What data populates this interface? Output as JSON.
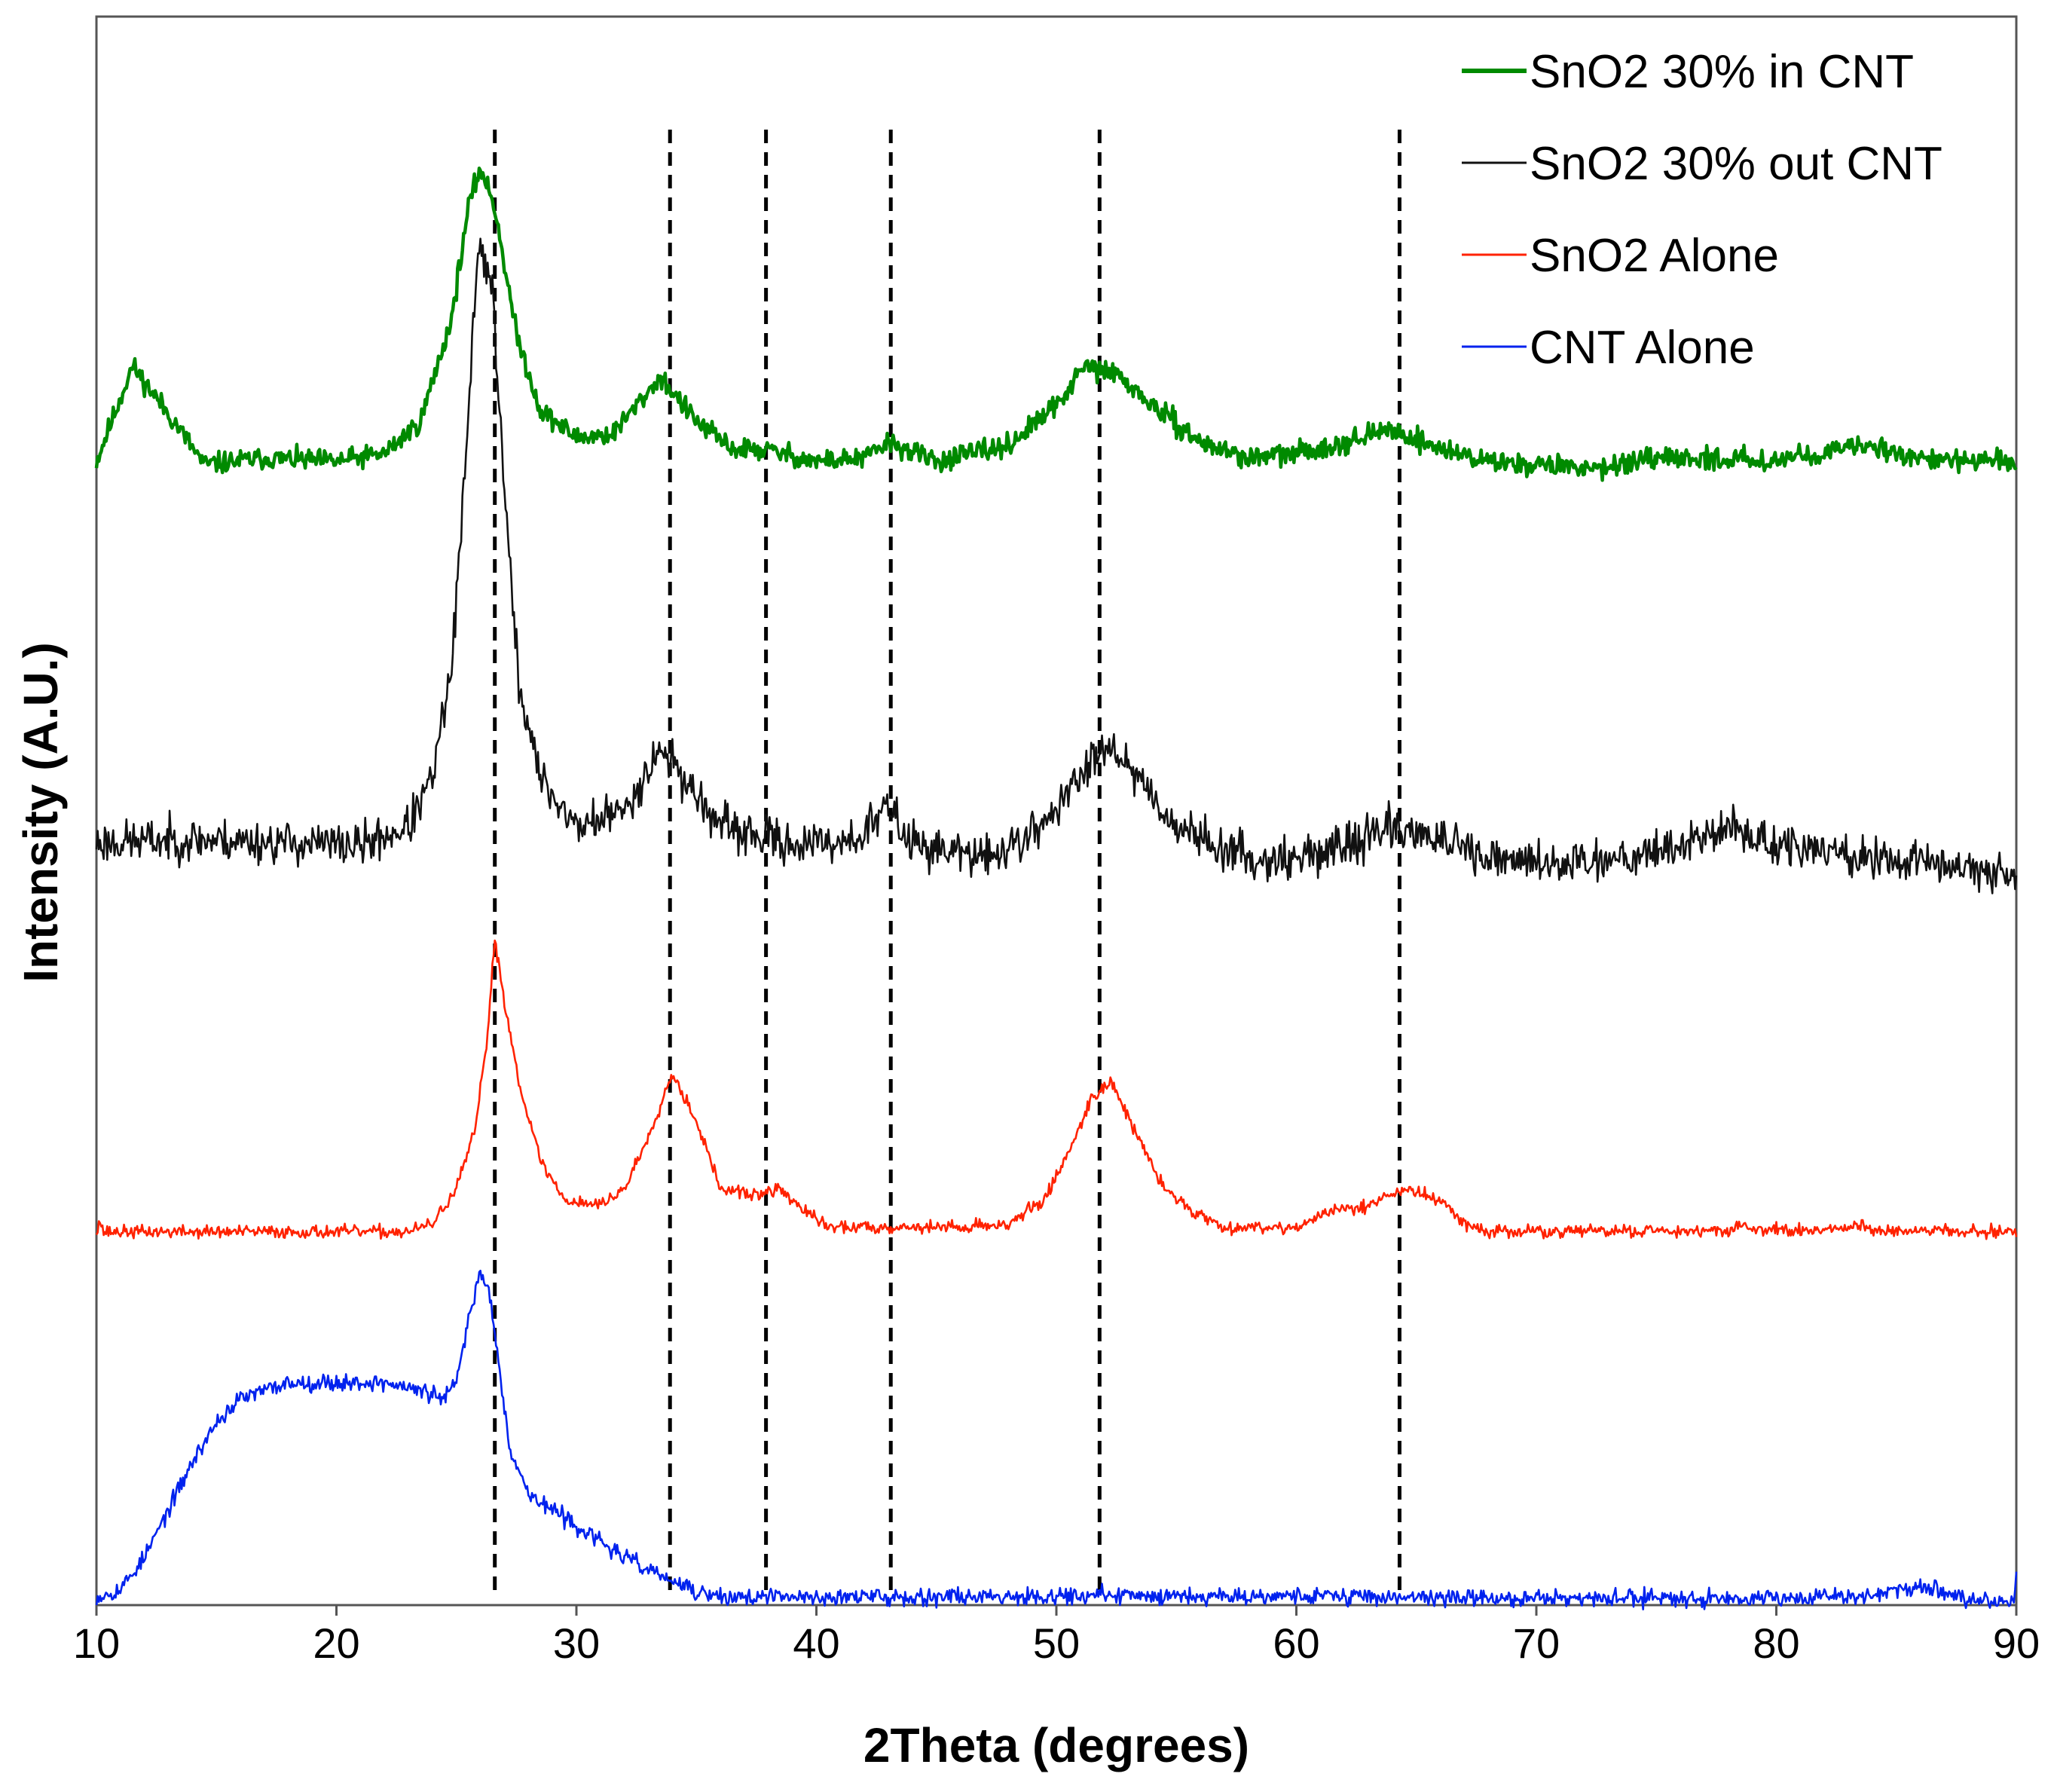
{
  "chart_data": {
    "type": "line",
    "title": "",
    "xlabel": "2Theta (degrees)",
    "ylabel": "Intensity (A.U.)",
    "xlim": [
      10,
      90
    ],
    "xticks": [
      10,
      20,
      30,
      40,
      50,
      60,
      70,
      80,
      90
    ],
    "ylim": [
      0,
      1
    ],
    "y_tick_labels": false,
    "grid": false,
    "legend_position": "top-right",
    "reference_lines": {
      "style": "dashed",
      "color": "#000000",
      "x": [
        26.6,
        33.9,
        37.9,
        43.1,
        51.8,
        64.3
      ]
    },
    "series": [
      {
        "name": "SnO2 30% in CNT",
        "color": "#008a00",
        "stroke": "thick",
        "noise": 0.01,
        "seed": 11,
        "points": [
          [
            10,
            0.72
          ],
          [
            11.5,
            0.78
          ],
          [
            13,
            0.75
          ],
          [
            14.5,
            0.718
          ],
          [
            17,
            0.722
          ],
          [
            20,
            0.72
          ],
          [
            22,
            0.725
          ],
          [
            23.5,
            0.745
          ],
          [
            24.8,
            0.81
          ],
          [
            25.5,
            0.88
          ],
          [
            26,
            0.905
          ],
          [
            26.6,
            0.88
          ],
          [
            27.5,
            0.8
          ],
          [
            28.5,
            0.752
          ],
          [
            30,
            0.735
          ],
          [
            31.5,
            0.737
          ],
          [
            33.5,
            0.773
          ],
          [
            35,
            0.745
          ],
          [
            36.5,
            0.728
          ],
          [
            38,
            0.727
          ],
          [
            40,
            0.72
          ],
          [
            42,
            0.722
          ],
          [
            43,
            0.732
          ],
          [
            45,
            0.72
          ],
          [
            48,
            0.73
          ],
          [
            50,
            0.755
          ],
          [
            51.2,
            0.78
          ],
          [
            52.5,
            0.775
          ],
          [
            54,
            0.755
          ],
          [
            56,
            0.732
          ],
          [
            58,
            0.722
          ],
          [
            60,
            0.725
          ],
          [
            62,
            0.732
          ],
          [
            64,
            0.74
          ],
          [
            66,
            0.728
          ],
          [
            68,
            0.72
          ],
          [
            72,
            0.716
          ],
          [
            76,
            0.722
          ],
          [
            80,
            0.721
          ],
          [
            84,
            0.73
          ],
          [
            86,
            0.722
          ],
          [
            88,
            0.72
          ],
          [
            90,
            0.72
          ]
        ]
      },
      {
        "name": "SnO2 30% out CNT",
        "color": "#111111",
        "stroke": "thin",
        "noise": 0.02,
        "seed": 23,
        "points": [
          [
            10,
            0.48
          ],
          [
            14,
            0.482
          ],
          [
            18,
            0.48
          ],
          [
            21,
            0.478
          ],
          [
            23,
            0.49
          ],
          [
            24,
            0.52
          ],
          [
            24.8,
            0.59
          ],
          [
            25.4,
            0.72
          ],
          [
            25.9,
            0.86
          ],
          [
            26.5,
            0.83
          ],
          [
            27,
            0.7
          ],
          [
            27.6,
            0.58
          ],
          [
            28.5,
            0.52
          ],
          [
            30,
            0.49
          ],
          [
            32,
            0.5
          ],
          [
            33.5,
            0.54
          ],
          [
            34.5,
            0.52
          ],
          [
            36,
            0.49
          ],
          [
            38,
            0.482
          ],
          [
            40,
            0.478
          ],
          [
            42,
            0.485
          ],
          [
            42.9,
            0.503
          ],
          [
            44,
            0.48
          ],
          [
            47,
            0.47
          ],
          [
            49,
            0.485
          ],
          [
            51,
            0.52
          ],
          [
            52,
            0.545
          ],
          [
            53,
            0.53
          ],
          [
            55,
            0.49
          ],
          [
            58,
            0.47
          ],
          [
            60,
            0.47
          ],
          [
            62,
            0.478
          ],
          [
            64,
            0.49
          ],
          [
            65.5,
            0.485
          ],
          [
            68,
            0.468
          ],
          [
            72,
            0.468
          ],
          [
            76,
            0.478
          ],
          [
            78,
            0.49
          ],
          [
            80,
            0.478
          ],
          [
            84,
            0.47
          ],
          [
            88,
            0.465
          ],
          [
            90,
            0.46
          ]
        ]
      },
      {
        "name": "SnO2 Alone",
        "color": "#ff2200",
        "stroke": "thin",
        "noise": 0.006,
        "seed": 37,
        "points": [
          [
            10,
            0.235
          ],
          [
            10.1,
            0.243
          ],
          [
            10.3,
            0.235
          ],
          [
            23,
            0.235
          ],
          [
            24,
            0.24
          ],
          [
            25,
            0.262
          ],
          [
            25.8,
            0.3
          ],
          [
            26.3,
            0.36
          ],
          [
            26.6,
            0.42
          ],
          [
            27,
            0.38
          ],
          [
            27.6,
            0.33
          ],
          [
            28.5,
            0.28
          ],
          [
            29.5,
            0.255
          ],
          [
            31,
            0.252
          ],
          [
            32,
            0.262
          ],
          [
            33,
            0.295
          ],
          [
            34,
            0.335
          ],
          [
            35,
            0.305
          ],
          [
            36,
            0.262
          ],
          [
            37.5,
            0.258
          ],
          [
            38.5,
            0.262
          ],
          [
            39.5,
            0.248
          ],
          [
            40.5,
            0.238
          ],
          [
            46,
            0.238
          ],
          [
            48,
            0.24
          ],
          [
            49.5,
            0.255
          ],
          [
            50.5,
            0.285
          ],
          [
            51.5,
            0.32
          ],
          [
            52.3,
            0.33
          ],
          [
            53.2,
            0.3
          ],
          [
            54.5,
            0.262
          ],
          [
            56,
            0.245
          ],
          [
            57,
            0.238
          ],
          [
            60,
            0.238
          ],
          [
            61.5,
            0.248
          ],
          [
            63,
            0.252
          ],
          [
            64.5,
            0.262
          ],
          [
            66,
            0.255
          ],
          [
            67,
            0.24
          ],
          [
            68,
            0.235
          ],
          [
            78,
            0.236
          ],
          [
            78.6,
            0.24
          ],
          [
            79,
            0.236
          ],
          [
            83,
            0.236
          ],
          [
            83.5,
            0.239
          ],
          [
            84,
            0.236
          ],
          [
            90,
            0.235
          ]
        ]
      },
      {
        "name": "CNT Alone",
        "color": "#0022ee",
        "stroke": "thin",
        "noise": 0.008,
        "seed": 53,
        "points": [
          [
            10,
            0.005
          ],
          [
            11,
            0.01
          ],
          [
            12,
            0.03
          ],
          [
            13,
            0.06
          ],
          [
            14,
            0.09
          ],
          [
            15,
            0.115
          ],
          [
            16,
            0.13
          ],
          [
            18,
            0.14
          ],
          [
            20,
            0.14
          ],
          [
            22,
            0.14
          ],
          [
            23.5,
            0.135
          ],
          [
            24.5,
            0.13
          ],
          [
            25,
            0.14
          ],
          [
            25.5,
            0.18
          ],
          [
            26,
            0.21
          ],
          [
            26.4,
            0.195
          ],
          [
            26.8,
            0.15
          ],
          [
            27.2,
            0.1
          ],
          [
            28,
            0.07
          ],
          [
            30,
            0.05
          ],
          [
            32,
            0.03
          ],
          [
            34,
            0.015
          ],
          [
            35,
            0.008
          ],
          [
            36,
            0.005
          ],
          [
            40,
            0.005
          ],
          [
            50,
            0.006
          ],
          [
            60,
            0.006
          ],
          [
            70,
            0.004
          ],
          [
            80,
            0.005
          ],
          [
            84,
            0.006
          ],
          [
            85.5,
            0.012
          ],
          [
            86.5,
            0.01
          ],
          [
            88,
            0.003
          ],
          [
            89.9,
            0.003
          ],
          [
            90,
            0.02
          ]
        ]
      }
    ]
  }
}
